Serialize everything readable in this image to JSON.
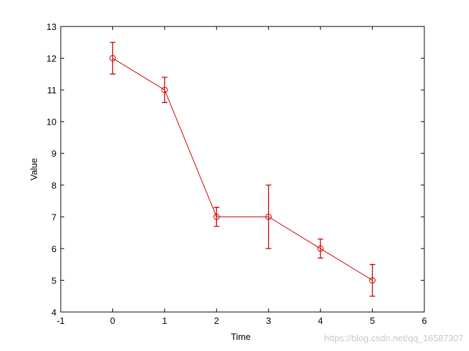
{
  "chart_data": {
    "type": "errorbar",
    "xlabel": "Time",
    "ylabel": "Value",
    "x": [
      0,
      1,
      2,
      3,
      4,
      5
    ],
    "values": [
      12,
      11,
      7,
      7,
      6,
      5
    ],
    "errors": [
      0.5,
      0.4,
      0.3,
      1,
      0.3,
      0.5
    ],
    "color": "#cc0000",
    "marker": "circle",
    "xlim": [
      -1,
      6
    ],
    "xticks": [
      -1,
      0,
      1,
      2,
      3,
      4,
      5,
      6
    ],
    "ylim": [
      4,
      13
    ],
    "yticks": [
      4,
      5,
      6,
      7,
      8,
      9,
      10,
      11,
      12,
      13
    ]
  },
  "watermark": "https://blog.csdn.net/qq_16587307"
}
